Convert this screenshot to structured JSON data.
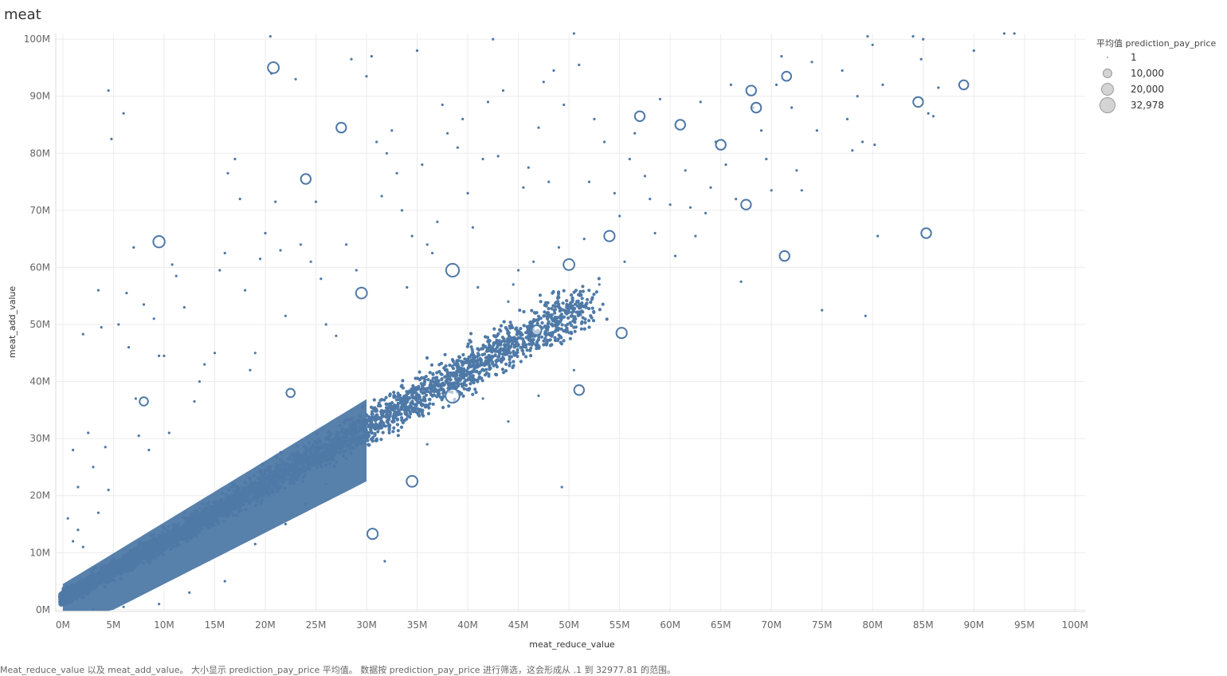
{
  "sheet": {
    "title": "meat"
  },
  "caption": "Meat_reduce_value 以及 meat_add_value。 大小显示 prediction_pay_price 平均值。 数据按 prediction_pay_price 进行筛选，这会形成从 .1 到 32977.81 的范围。",
  "colors": {
    "mark": "#4e79a7",
    "grid": "#ececec",
    "axis_text": "#666666",
    "legend_fill": "#d4d4d4"
  },
  "legend": {
    "title": "平均值 prediction_pay_price",
    "items": [
      {
        "label": "1",
        "value": 1
      },
      {
        "label": "10,000",
        "value": 10000
      },
      {
        "label": "20,000",
        "value": 20000
      },
      {
        "label": "32,978",
        "value": 32978
      }
    ]
  },
  "chart_data": {
    "type": "scatter",
    "title": "meat",
    "xlabel": "meat_reduce_value",
    "ylabel": "meat_add_value",
    "xlim": [
      -0.7,
      101
    ],
    "ylim": [
      -0.3,
      101
    ],
    "unit": "M",
    "grid": true,
    "legend_position": "right",
    "size_field": "平均值 prediction_pay_price",
    "size_range": [
      1,
      32978
    ],
    "xticks": [
      "0M",
      "5M",
      "10M",
      "15M",
      "20M",
      "25M",
      "30M",
      "35M",
      "40M",
      "45M",
      "50M",
      "55M",
      "60M",
      "65M",
      "70M",
      "75M",
      "80M",
      "85M",
      "90M",
      "95M",
      "100M"
    ],
    "yticks": [
      "0M",
      "10M",
      "20M",
      "30M",
      "40M",
      "50M",
      "60M",
      "70M",
      "80M",
      "90M",
      "100M"
    ],
    "dense_cluster": {
      "description_points": [
        [
          0,
          0
        ],
        [
          5,
          7
        ],
        [
          10,
          12
        ],
        [
          15,
          17
        ],
        [
          20,
          23
        ],
        [
          25,
          28
        ],
        [
          30,
          33
        ],
        [
          35,
          38
        ],
        [
          40,
          43
        ],
        [
          45,
          48
        ],
        [
          50,
          52
        ]
      ],
      "point_size": 1
    },
    "points": [
      [
        0.3,
        3.5,
        1
      ],
      [
        0.5,
        16,
        1
      ],
      [
        1,
        28,
        1
      ],
      [
        1.5,
        21.5,
        1
      ],
      [
        2,
        48.3,
        1
      ],
      [
        2.5,
        31,
        1
      ],
      [
        3,
        25,
        1
      ],
      [
        3.5,
        56,
        1
      ],
      [
        3.8,
        49.5,
        1
      ],
      [
        4.2,
        28.5,
        1
      ],
      [
        4.5,
        91,
        1
      ],
      [
        4.8,
        82.5,
        1
      ],
      [
        5.5,
        50,
        1
      ],
      [
        6,
        87,
        1
      ],
      [
        6.3,
        55.5,
        1
      ],
      [
        6.5,
        46,
        1
      ],
      [
        7,
        63.5,
        1
      ],
      [
        7.2,
        37,
        1
      ],
      [
        7.5,
        30.5,
        1
      ],
      [
        8,
        53.5,
        1
      ],
      [
        8,
        36.5,
        8000
      ],
      [
        8.5,
        28,
        1
      ],
      [
        9,
        51,
        1
      ],
      [
        9.5,
        44.5,
        1
      ],
      [
        10,
        44.5,
        1
      ],
      [
        10.5,
        31,
        1
      ],
      [
        9.5,
        64.5,
        18000
      ],
      [
        10.8,
        60.5,
        1
      ],
      [
        11.2,
        58.5,
        1
      ],
      [
        12,
        53,
        1
      ],
      [
        13,
        36.5,
        1
      ],
      [
        13.5,
        40,
        1
      ],
      [
        14,
        43,
        1
      ],
      [
        15,
        45,
        1
      ],
      [
        15.5,
        59.5,
        1
      ],
      [
        16,
        62.5,
        1
      ],
      [
        16.3,
        76.5,
        1
      ],
      [
        17,
        79,
        1
      ],
      [
        17.5,
        72,
        1
      ],
      [
        18,
        56,
        1
      ],
      [
        18.5,
        42,
        1
      ],
      [
        19,
        45,
        1
      ],
      [
        19.5,
        61.5,
        1
      ],
      [
        20,
        66,
        1
      ],
      [
        20.5,
        100.5,
        1
      ],
      [
        20.6,
        94,
        1
      ],
      [
        20.8,
        95,
        16000
      ],
      [
        21,
        71.5,
        1
      ],
      [
        21.5,
        63,
        1
      ],
      [
        22,
        51.5,
        1
      ],
      [
        22.5,
        38,
        8000
      ],
      [
        23,
        93,
        1
      ],
      [
        23.5,
        64,
        1
      ],
      [
        24,
        75.5,
        12000
      ],
      [
        24.5,
        61,
        1
      ],
      [
        25,
        71.5,
        1
      ],
      [
        25.5,
        58,
        1
      ],
      [
        26,
        50,
        1
      ],
      [
        27,
        48,
        1
      ],
      [
        27.5,
        84.5,
        12000
      ],
      [
        28,
        64,
        1
      ],
      [
        28.5,
        96.5,
        1
      ],
      [
        29,
        59.5,
        1
      ],
      [
        29.5,
        55.5,
        16000
      ],
      [
        30,
        93.5,
        1
      ],
      [
        30.5,
        97,
        1
      ],
      [
        31,
        82,
        1
      ],
      [
        31.5,
        72.5,
        1
      ],
      [
        32,
        80,
        1
      ],
      [
        32.5,
        84,
        1
      ],
      [
        33,
        76.5,
        1
      ],
      [
        33.5,
        70,
        1
      ],
      [
        34,
        56.5,
        1
      ],
      [
        34.5,
        65.5,
        1
      ],
      [
        35,
        98,
        1
      ],
      [
        35.5,
        78,
        1
      ],
      [
        36,
        64,
        1
      ],
      [
        36.5,
        62.5,
        1
      ],
      [
        37,
        68,
        1
      ],
      [
        37.5,
        88.5,
        1
      ],
      [
        38,
        83.5,
        1
      ],
      [
        38.5,
        59.5,
        24000
      ],
      [
        39,
        81,
        1
      ],
      [
        39.5,
        86,
        1
      ],
      [
        40,
        73,
        1
      ],
      [
        40.5,
        67,
        1
      ],
      [
        41,
        56.5,
        1
      ],
      [
        41.5,
        79,
        1
      ],
      [
        42,
        89,
        1
      ],
      [
        42.5,
        100,
        1
      ],
      [
        43,
        79.5,
        1
      ],
      [
        43.5,
        91,
        1
      ],
      [
        44,
        54,
        1
      ],
      [
        44.5,
        57,
        1
      ],
      [
        45,
        59.5,
        1
      ],
      [
        45.5,
        74,
        1
      ],
      [
        46,
        77.5,
        1
      ],
      [
        46.5,
        61,
        1
      ],
      [
        47,
        84.5,
        1
      ],
      [
        47.5,
        92.5,
        1
      ],
      [
        48,
        75,
        1
      ],
      [
        48.5,
        94.5,
        1
      ],
      [
        49,
        63.5,
        1
      ],
      [
        49.5,
        88.5,
        1
      ],
      [
        50,
        60.5,
        16000
      ],
      [
        50.5,
        101,
        1
      ],
      [
        51,
        95.5,
        1
      ],
      [
        51.5,
        65,
        1
      ],
      [
        52,
        75,
        1
      ],
      [
        52.5,
        86,
        1
      ],
      [
        53,
        57,
        1
      ],
      [
        53.5,
        82,
        1
      ],
      [
        54,
        65.5,
        14000
      ],
      [
        54.5,
        73,
        1
      ],
      [
        55,
        69,
        1
      ],
      [
        55.5,
        61,
        1
      ],
      [
        56,
        79,
        1
      ],
      [
        56.5,
        83.5,
        1
      ],
      [
        57,
        86.5,
        12000
      ],
      [
        57.5,
        76,
        1
      ],
      [
        58,
        72,
        1
      ],
      [
        58.5,
        66,
        1
      ],
      [
        59,
        89.5,
        1
      ],
      [
        60,
        71,
        1
      ],
      [
        60.5,
        62,
        1
      ],
      [
        61,
        85,
        12000
      ],
      [
        61.5,
        77,
        1
      ],
      [
        62,
        70.5,
        1
      ],
      [
        62.5,
        65.5,
        1
      ],
      [
        63,
        89,
        1
      ],
      [
        63.5,
        69.5,
        1
      ],
      [
        64,
        74,
        1
      ],
      [
        64.5,
        82,
        1
      ],
      [
        65,
        81.5,
        12000
      ],
      [
        65.5,
        78,
        1
      ],
      [
        66,
        92,
        1
      ],
      [
        66.5,
        72,
        1
      ],
      [
        67,
        57.5,
        1
      ],
      [
        67.5,
        71,
        12000
      ],
      [
        68,
        91,
        12000
      ],
      [
        68.2,
        88,
        1
      ],
      [
        68.5,
        88,
        12000
      ],
      [
        69,
        84,
        1
      ],
      [
        69.5,
        79,
        1
      ],
      [
        70,
        73.5,
        1
      ],
      [
        70.5,
        92,
        1
      ],
      [
        71,
        97,
        1
      ],
      [
        71.3,
        62,
        12000
      ],
      [
        71.5,
        93.5,
        10000
      ],
      [
        72,
        88,
        1
      ],
      [
        72.5,
        77,
        1
      ],
      [
        73,
        73.5,
        1
      ],
      [
        74,
        96,
        1
      ],
      [
        74.5,
        84,
        1
      ],
      [
        75,
        52.5,
        1
      ],
      [
        77,
        94.5,
        1
      ],
      [
        77.5,
        86,
        1
      ],
      [
        78,
        80.5,
        1
      ],
      [
        78.5,
        90,
        1
      ],
      [
        79,
        82,
        1
      ],
      [
        79.3,
        51.5,
        1
      ],
      [
        79.5,
        100.5,
        1
      ],
      [
        80,
        99,
        1
      ],
      [
        80.2,
        81.5,
        1
      ],
      [
        80.5,
        65.5,
        1
      ],
      [
        81,
        92,
        1
      ],
      [
        84,
        100.5,
        1
      ],
      [
        84.5,
        89,
        12000
      ],
      [
        84.8,
        96.5,
        1
      ],
      [
        85,
        100,
        1
      ],
      [
        85.3,
        66,
        12000
      ],
      [
        85.5,
        87,
        1
      ],
      [
        86,
        86.5,
        1
      ],
      [
        86.5,
        91.5,
        1
      ],
      [
        89,
        92,
        10000
      ],
      [
        90,
        98,
        1
      ],
      [
        94,
        101,
        1
      ],
      [
        93,
        101,
        1
      ],
      [
        55.2,
        48.5,
        14000
      ],
      [
        51,
        38.5,
        12000
      ],
      [
        49.3,
        21.5,
        1
      ],
      [
        46.8,
        49,
        12000
      ],
      [
        38.5,
        37.5,
        30000
      ],
      [
        34.5,
        22.5,
        16000
      ],
      [
        30.6,
        13.3,
        14000
      ],
      [
        31.8,
        8.5,
        1
      ],
      [
        50.5,
        42,
        1
      ],
      [
        47,
        37.5,
        1
      ],
      [
        41.5,
        37,
        1
      ],
      [
        44,
        33,
        1
      ],
      [
        36,
        29,
        1
      ],
      [
        28,
        26.5,
        1
      ],
      [
        26,
        22,
        1
      ],
      [
        24,
        18.5,
        1
      ],
      [
        22,
        15,
        1
      ],
      [
        19,
        11.5,
        1
      ],
      [
        16,
        5,
        1
      ],
      [
        12.5,
        3,
        1
      ],
      [
        9.5,
        1,
        1
      ],
      [
        6,
        0.5,
        1
      ],
      [
        3,
        0.2,
        1
      ],
      [
        2,
        11,
        1
      ],
      [
        1.5,
        14,
        1
      ],
      [
        1,
        12,
        1
      ],
      [
        3.5,
        17,
        1
      ],
      [
        4.5,
        21,
        1
      ]
    ]
  }
}
